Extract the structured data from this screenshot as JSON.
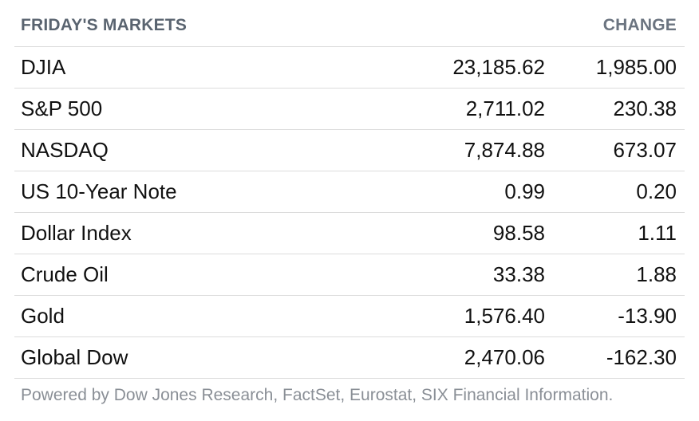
{
  "header": {
    "title": "FRIDAY'S MARKETS",
    "change_label": "CHANGE"
  },
  "markets": [
    {
      "name": "DJIA",
      "value": "23,185.62",
      "change": "1,985.00"
    },
    {
      "name": "S&P 500",
      "value": "2,711.02",
      "change": "230.38"
    },
    {
      "name": "NASDAQ",
      "value": "7,874.88",
      "change": "673.07"
    },
    {
      "name": "US 10-Year Note",
      "value": "0.99",
      "change": "0.20"
    },
    {
      "name": "Dollar Index",
      "value": "98.58",
      "change": "1.11"
    },
    {
      "name": "Crude Oil",
      "value": "33.38",
      "change": "1.88"
    },
    {
      "name": "Gold",
      "value": "1,576.40",
      "change": "-13.90"
    },
    {
      "name": "Global Dow",
      "value": "2,470.06",
      "change": "-162.30"
    }
  ],
  "footer": {
    "attribution": "Powered by Dow Jones Research, FactSet, Eurostat, SIX Financial Information."
  }
}
